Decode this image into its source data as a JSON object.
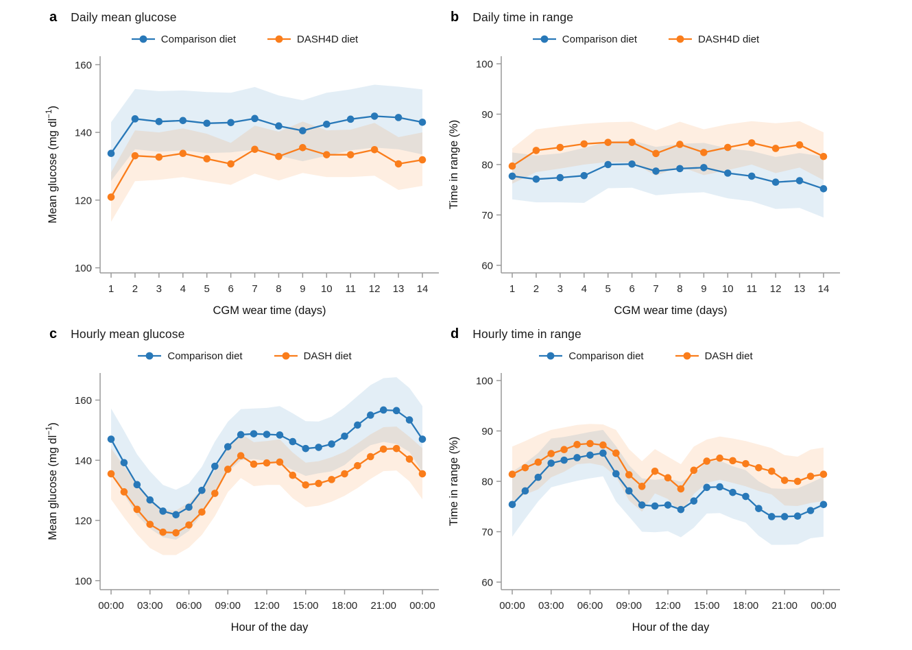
{
  "figure": {
    "background": "#ffffff",
    "axis_color": "#999999",
    "tick_label_color": "#262626",
    "title_color": "#111111",
    "band_opacity": 0.13
  },
  "chart_data": [
    {
      "type": "line",
      "letter": "a",
      "title": "Daily mean glucose",
      "xlabel": "CGM wear time (days)",
      "ylabel": "Mean glucose (mg dl⁻¹)",
      "x": [
        1,
        2,
        3,
        4,
        5,
        6,
        7,
        8,
        9,
        10,
        11,
        12,
        13,
        14
      ],
      "xticks": [
        1,
        2,
        3,
        4,
        5,
        6,
        7,
        8,
        9,
        10,
        11,
        12,
        13,
        14
      ],
      "xtick_labels": [
        "1",
        "2",
        "3",
        "4",
        "5",
        "6",
        "7",
        "8",
        "9",
        "10",
        "11",
        "12",
        "13",
        "14"
      ],
      "ylim": [
        98.5,
        162.5
      ],
      "yticks": [
        100,
        120,
        140,
        160
      ],
      "grid": false,
      "legend_position": "top",
      "series": [
        {
          "name": "Comparison diet",
          "color": "#2878B8",
          "values": [
            133.8,
            144.0,
            143.2,
            143.5,
            142.7,
            142.9,
            144.1,
            141.9,
            140.5,
            142.4,
            143.9,
            144.8,
            144.4,
            143.0
          ],
          "band_upper": [
            143.0,
            152.8,
            152.2,
            152.4,
            151.9,
            151.7,
            153.4,
            150.9,
            149.5,
            151.7,
            152.7,
            154.1,
            153.5,
            152.7
          ],
          "band_lower": [
            125.7,
            135.0,
            134.3,
            134.7,
            133.9,
            134.1,
            134.9,
            133.1,
            131.5,
            133.1,
            134.7,
            135.5,
            135.0,
            133.5
          ]
        },
        {
          "name": "DASH4D diet",
          "color": "#FA7D1B",
          "values": [
            120.9,
            133.1,
            132.7,
            133.8,
            132.2,
            130.7,
            135.0,
            132.9,
            135.5,
            133.4,
            133.4,
            134.9,
            130.7,
            131.9
          ],
          "band_upper": [
            128.2,
            140.6,
            140.0,
            141.2,
            139.6,
            136.9,
            142.0,
            140.2,
            143.2,
            140.6,
            140.8,
            142.8,
            138.6,
            140.0
          ],
          "band_lower": [
            113.6,
            125.6,
            126.0,
            126.8,
            125.6,
            124.5,
            127.8,
            125.8,
            128.0,
            126.8,
            126.8,
            127.2,
            123.0,
            124.2
          ]
        }
      ]
    },
    {
      "type": "line",
      "letter": "b",
      "title": "Daily time in range",
      "xlabel": "CGM wear time (days)",
      "ylabel": "Time in range (%)",
      "x": [
        1,
        2,
        3,
        4,
        5,
        6,
        7,
        8,
        9,
        10,
        11,
        12,
        13,
        14
      ],
      "xticks": [
        1,
        2,
        3,
        4,
        5,
        6,
        7,
        8,
        9,
        10,
        11,
        12,
        13,
        14
      ],
      "xtick_labels": [
        "1",
        "2",
        "3",
        "4",
        "5",
        "6",
        "7",
        "8",
        "9",
        "10",
        "11",
        "12",
        "13",
        "14"
      ],
      "ylim": [
        58.5,
        101.5
      ],
      "yticks": [
        60,
        70,
        80,
        90,
        100
      ],
      "grid": false,
      "legend_position": "top",
      "series": [
        {
          "name": "Comparison diet",
          "color": "#2878B8",
          "values": [
            77.7,
            77.1,
            77.4,
            77.8,
            80.0,
            80.1,
            78.7,
            79.2,
            79.4,
            78.3,
            77.7,
            76.5,
            76.8,
            75.2
          ],
          "band_upper": [
            82.4,
            81.8,
            82.2,
            83.3,
            84.6,
            84.8,
            83.5,
            84.1,
            84.3,
            83.2,
            82.7,
            81.5,
            82.3,
            81.6
          ],
          "band_lower": [
            73.1,
            72.5,
            72.5,
            72.4,
            75.3,
            75.4,
            73.9,
            74.3,
            74.5,
            73.3,
            72.7,
            71.2,
            71.4,
            69.5
          ]
        },
        {
          "name": "DASH4D diet",
          "color": "#FA7D1B",
          "values": [
            79.7,
            82.8,
            83.4,
            84.1,
            84.4,
            84.4,
            82.2,
            84.0,
            82.4,
            83.4,
            84.3,
            83.2,
            83.9,
            81.6
          ],
          "band_upper": [
            83.2,
            87.0,
            87.6,
            88.1,
            88.4,
            88.5,
            86.8,
            88.5,
            87.0,
            88.0,
            88.6,
            88.2,
            88.6,
            86.4
          ],
          "band_lower": [
            76.2,
            78.5,
            79.2,
            80.0,
            80.5,
            80.4,
            77.8,
            79.6,
            77.9,
            78.9,
            80.0,
            78.3,
            79.4,
            76.9
          ]
        }
      ]
    },
    {
      "type": "line",
      "letter": "c",
      "title": "Hourly mean glucose",
      "xlabel": "Hour of the day",
      "ylabel": "Mean glucose (mg dl⁻¹)",
      "x": [
        0,
        1,
        2,
        3,
        4,
        5,
        6,
        7,
        8,
        9,
        10,
        11,
        12,
        13,
        14,
        15,
        16,
        17,
        18,
        19,
        20,
        21,
        22,
        23,
        24
      ],
      "xticks": [
        0,
        3,
        6,
        9,
        12,
        15,
        18,
        21,
        24
      ],
      "xtick_labels": [
        "00:00",
        "03:00",
        "06:00",
        "09:00",
        "12:00",
        "15:00",
        "18:00",
        "21:00",
        "00:00"
      ],
      "ylim": [
        97,
        169
      ],
      "yticks": [
        100,
        120,
        140,
        160
      ],
      "grid": false,
      "legend_position": "top",
      "series": [
        {
          "name": "Comparison diet",
          "color": "#2878B8",
          "values": [
            147.0,
            139.2,
            131.9,
            126.8,
            123.1,
            121.9,
            124.4,
            130.0,
            138.0,
            144.5,
            148.5,
            148.8,
            148.6,
            148.4,
            146.2,
            143.9,
            144.3,
            145.4,
            148.0,
            151.7,
            155.0,
            156.7,
            156.5,
            153.4,
            147.0
          ],
          "band_upper": [
            157.2,
            149.8,
            142.0,
            136.3,
            131.8,
            130.2,
            132.3,
            137.8,
            146.2,
            152.8,
            157.0,
            157.2,
            157.4,
            158.0,
            155.6,
            153.0,
            152.9,
            154.5,
            157.6,
            161.3,
            165.0,
            167.3,
            167.6,
            164.0,
            158.0
          ],
          "band_lower": [
            136.8,
            128.6,
            121.8,
            117.3,
            114.4,
            113.6,
            116.5,
            122.2,
            129.8,
            136.2,
            140.0,
            140.4,
            139.8,
            138.8,
            136.8,
            134.8,
            135.7,
            136.3,
            138.4,
            142.1,
            145.0,
            146.1,
            145.4,
            142.8,
            136.0
          ]
        },
        {
          "name": "DASH diet",
          "color": "#FA7D1B",
          "values": [
            135.5,
            129.5,
            123.7,
            118.7,
            116.1,
            115.9,
            118.5,
            122.8,
            129.0,
            137.0,
            141.5,
            138.7,
            139.1,
            139.4,
            135.0,
            131.8,
            132.3,
            133.6,
            135.5,
            138.2,
            141.2,
            143.7,
            143.9,
            140.4,
            135.5
          ],
          "band_upper": [
            144.0,
            138.0,
            132.0,
            126.6,
            123.7,
            123.3,
            126.0,
            130.4,
            136.6,
            144.6,
            148.9,
            146.0,
            146.4,
            147.0,
            142.6,
            139.2,
            139.7,
            141.0,
            142.8,
            145.6,
            148.6,
            151.0,
            151.2,
            147.8,
            144.0
          ],
          "band_lower": [
            127.0,
            121.0,
            115.4,
            110.8,
            108.5,
            108.5,
            111.0,
            115.2,
            121.4,
            129.4,
            134.1,
            131.4,
            131.8,
            131.8,
            127.4,
            124.4,
            124.9,
            126.2,
            128.2,
            130.8,
            133.8,
            136.4,
            136.6,
            133.0,
            127.0
          ]
        }
      ]
    },
    {
      "type": "line",
      "letter": "d",
      "title": "Hourly time in range",
      "xlabel": "Hour of the day",
      "ylabel": "Time in range (%)",
      "x": [
        0,
        1,
        2,
        3,
        4,
        5,
        6,
        7,
        8,
        9,
        10,
        11,
        12,
        13,
        14,
        15,
        16,
        17,
        18,
        19,
        20,
        21,
        22,
        23,
        24
      ],
      "xticks": [
        0,
        3,
        6,
        9,
        12,
        15,
        18,
        21,
        24
      ],
      "xtick_labels": [
        "00:00",
        "03:00",
        "06:00",
        "09:00",
        "12:00",
        "15:00",
        "18:00",
        "21:00",
        "00:00"
      ],
      "ylim": [
        58.5,
        101.5
      ],
      "yticks": [
        60,
        70,
        80,
        90,
        100
      ],
      "grid": false,
      "legend_position": "top",
      "series": [
        {
          "name": "Comparison diet",
          "color": "#2878B8",
          "values": [
            75.4,
            78.1,
            80.8,
            83.6,
            84.2,
            84.7,
            85.2,
            85.6,
            81.5,
            78.1,
            75.3,
            75.1,
            75.3,
            74.4,
            76.1,
            78.8,
            78.9,
            77.8,
            77.0,
            74.6,
            73.0,
            73.0,
            73.1,
            74.2,
            75.4
          ],
          "band_upper": [
            81.9,
            83.6,
            85.6,
            88.5,
            88.8,
            89.3,
            89.8,
            90.2,
            87.0,
            83.2,
            80.6,
            80.3,
            80.6,
            79.9,
            81.4,
            84.0,
            84.1,
            83.0,
            82.2,
            80.0,
            78.6,
            78.5,
            78.6,
            79.7,
            80.9
          ],
          "band_lower": [
            69.0,
            72.6,
            76.0,
            78.8,
            79.5,
            80.1,
            80.6,
            81.0,
            76.0,
            73.0,
            70.0,
            69.9,
            70.1,
            68.9,
            70.8,
            73.6,
            73.7,
            72.6,
            71.8,
            69.2,
            67.4,
            67.4,
            67.5,
            68.7,
            69.0
          ]
        },
        {
          "name": "DASH diet",
          "color": "#FA7D1B",
          "values": [
            81.4,
            82.7,
            83.8,
            85.5,
            86.3,
            87.3,
            87.5,
            87.2,
            85.6,
            81.3,
            79.0,
            82.0,
            80.7,
            78.5,
            82.2,
            84.0,
            84.6,
            84.1,
            83.5,
            82.7,
            82.0,
            80.2,
            80.0,
            81.0,
            81.4
          ],
          "band_upper": [
            86.9,
            88.0,
            89.2,
            90.2,
            90.7,
            91.2,
            91.4,
            91.3,
            90.2,
            86.4,
            84.0,
            86.4,
            84.9,
            83.4,
            86.9,
            88.3,
            88.9,
            88.5,
            88.0,
            87.3,
            86.6,
            85.2,
            84.9,
            86.3,
            86.7
          ],
          "band_lower": [
            75.9,
            77.4,
            78.4,
            80.8,
            81.9,
            83.4,
            83.6,
            83.1,
            81.0,
            76.2,
            74.0,
            77.6,
            76.5,
            73.6,
            77.5,
            79.7,
            80.3,
            79.7,
            79.0,
            78.1,
            77.4,
            75.2,
            75.1,
            75.7,
            76.1
          ]
        }
      ]
    }
  ]
}
